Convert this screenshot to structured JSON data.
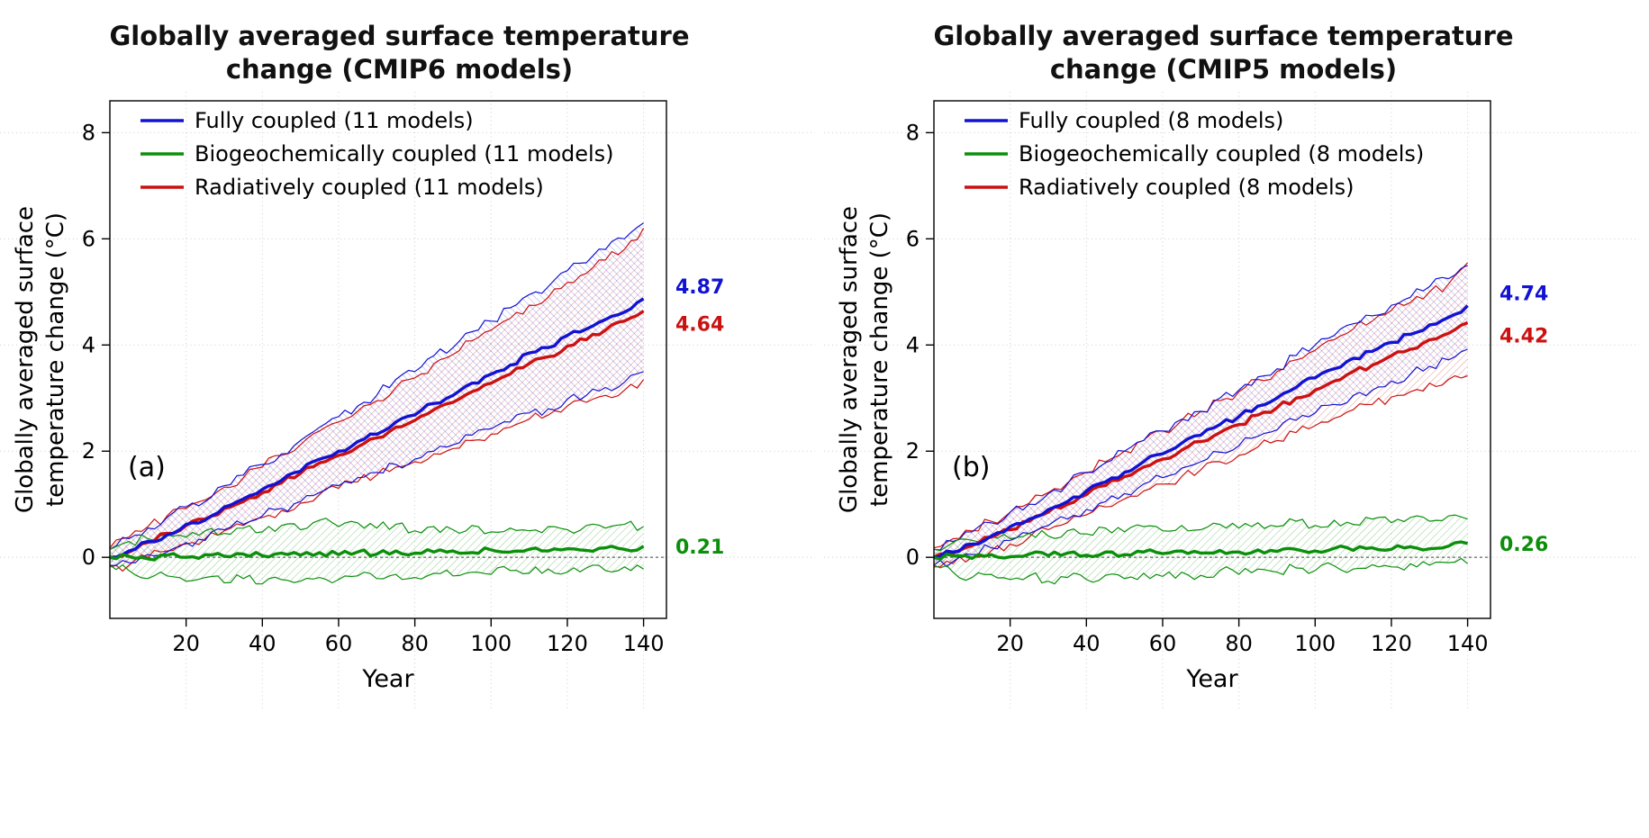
{
  "colors": {
    "fully_coupled": "#1212d2",
    "biogeochemically_coupled": "#0b8f0b",
    "radiatively_coupled": "#cc1111",
    "grid": "#c9c9c9",
    "axis": "#000000",
    "zero_line": "#444444",
    "background": "#ffffff"
  },
  "panels": [
    {
      "panel_label": "(a)",
      "title_line1": "Globally averaged surface temperature",
      "title_line2": "change (CMIP6 models)",
      "xlabel": "Year",
      "ylabel_line1": "Globally averaged surface",
      "ylabel_line2": "temperature change (°C)",
      "x_ticks": [
        20,
        40,
        60,
        80,
        100,
        120,
        140
      ],
      "y_ticks": [
        0,
        2,
        4,
        6,
        8
      ],
      "legend": [
        "Fully coupled (11 models)",
        "Biogeochemically coupled (11 models)",
        "Radiatively coupled (11 models)"
      ],
      "end_labels": [
        {
          "text": "4.87",
          "series": "fully_coupled",
          "value": 4.87
        },
        {
          "text": "4.64",
          "series": "radiatively_coupled",
          "value": 4.64
        },
        {
          "text": "0.21",
          "series": "biogeochemically_coupled",
          "value": 0.21
        }
      ]
    },
    {
      "panel_label": "(b)",
      "title_line1": "Globally averaged surface temperature",
      "title_line2": "change (CMIP5 models)",
      "xlabel": "Year",
      "ylabel_line1": "Globally averaged surface",
      "ylabel_line2": "temperature change (°C)",
      "x_ticks": [
        20,
        40,
        60,
        80,
        100,
        120,
        140
      ],
      "y_ticks": [
        0,
        2,
        4,
        6,
        8
      ],
      "legend": [
        "Fully coupled (8 models)",
        "Biogeochemically coupled (8 models)",
        "Radiatively coupled (8 models)"
      ],
      "end_labels": [
        {
          "text": "4.74",
          "series": "fully_coupled",
          "value": 4.74
        },
        {
          "text": "4.42",
          "series": "radiatively_coupled",
          "value": 4.42
        },
        {
          "text": "0.26",
          "series": "biogeochemically_coupled",
          "value": 0.26
        }
      ]
    }
  ],
  "chart_data": [
    {
      "type": "line",
      "title": "Globally averaged surface temperature change (CMIP6 models)",
      "xlabel": "Year",
      "ylabel": "Globally averaged surface temperature change (°C)",
      "xlim": [
        0,
        146
      ],
      "ylim": [
        -1.15,
        8.6
      ],
      "grid": "dotted",
      "legend_position": "top-left",
      "x": [
        0,
        5,
        10,
        15,
        20,
        25,
        30,
        35,
        40,
        45,
        50,
        55,
        60,
        65,
        70,
        75,
        80,
        85,
        90,
        95,
        100,
        105,
        110,
        115,
        120,
        125,
        130,
        135,
        140
      ],
      "series": [
        {
          "name": "Fully coupled (11 models)",
          "color_key": "fully_coupled",
          "end_value": 4.87,
          "mean": [
            0.0,
            0.12,
            0.3,
            0.42,
            0.62,
            0.7,
            0.95,
            1.1,
            1.28,
            1.45,
            1.62,
            1.85,
            2.0,
            2.18,
            2.32,
            2.55,
            2.68,
            2.9,
            3.05,
            3.28,
            3.45,
            3.62,
            3.85,
            3.95,
            4.18,
            4.3,
            4.48,
            4.62,
            4.87
          ],
          "upper": [
            0.15,
            0.35,
            0.55,
            0.75,
            0.95,
            1.05,
            1.35,
            1.55,
            1.75,
            1.95,
            2.2,
            2.45,
            2.65,
            2.85,
            3.05,
            3.35,
            3.5,
            3.8,
            3.95,
            4.25,
            4.45,
            4.7,
            4.95,
            5.1,
            5.4,
            5.55,
            5.8,
            6.0,
            6.3
          ],
          "lower": [
            -0.15,
            -0.1,
            0.05,
            0.1,
            0.28,
            0.32,
            0.52,
            0.62,
            0.78,
            0.92,
            1.05,
            1.22,
            1.35,
            1.5,
            1.6,
            1.75,
            1.85,
            2.0,
            2.12,
            2.3,
            2.42,
            2.55,
            2.72,
            2.8,
            2.98,
            3.05,
            3.2,
            3.3,
            3.5
          ]
        },
        {
          "name": "Biogeochemically coupled (11 models)",
          "color_key": "biogeochemically_coupled",
          "end_value": 0.21,
          "mean": [
            0.0,
            0.02,
            -0.03,
            0.04,
            0.0,
            0.05,
            0.02,
            0.06,
            0.03,
            0.08,
            0.04,
            0.09,
            0.05,
            0.1,
            0.06,
            0.12,
            0.08,
            0.1,
            0.12,
            0.09,
            0.14,
            0.1,
            0.15,
            0.12,
            0.16,
            0.13,
            0.18,
            0.15,
            0.21
          ],
          "upper": [
            0.15,
            0.3,
            0.35,
            0.42,
            0.38,
            0.5,
            0.45,
            0.55,
            0.48,
            0.6,
            0.52,
            0.7,
            0.58,
            0.65,
            0.55,
            0.62,
            0.5,
            0.58,
            0.52,
            0.6,
            0.48,
            0.55,
            0.5,
            0.58,
            0.52,
            0.6,
            0.55,
            0.62,
            0.58
          ],
          "lower": [
            -0.15,
            -0.25,
            -0.4,
            -0.35,
            -0.45,
            -0.38,
            -0.48,
            -0.4,
            -0.5,
            -0.42,
            -0.45,
            -0.38,
            -0.42,
            -0.35,
            -0.4,
            -0.32,
            -0.38,
            -0.3,
            -0.35,
            -0.28,
            -0.32,
            -0.25,
            -0.3,
            -0.22,
            -0.28,
            -0.2,
            -0.25,
            -0.18,
            -0.22
          ]
        },
        {
          "name": "Radiatively coupled (11 models)",
          "color_key": "radiatively_coupled",
          "end_value": 4.64,
          "mean": [
            0.0,
            0.1,
            0.28,
            0.45,
            0.6,
            0.72,
            0.92,
            1.05,
            1.22,
            1.4,
            1.58,
            1.78,
            1.92,
            2.08,
            2.25,
            2.45,
            2.58,
            2.78,
            2.92,
            3.12,
            3.28,
            3.45,
            3.65,
            3.78,
            3.98,
            4.1,
            4.28,
            4.45,
            4.64
          ],
          "upper": [
            0.18,
            0.38,
            0.58,
            0.78,
            0.92,
            1.08,
            1.32,
            1.5,
            1.7,
            1.92,
            2.12,
            2.38,
            2.55,
            2.75,
            2.95,
            3.2,
            3.38,
            3.65,
            3.82,
            4.08,
            4.28,
            4.5,
            4.75,
            4.9,
            5.18,
            5.35,
            5.6,
            5.8,
            6.2
          ],
          "lower": [
            -0.18,
            -0.15,
            0.0,
            0.12,
            0.25,
            0.35,
            0.5,
            0.6,
            0.75,
            0.88,
            1.02,
            1.18,
            1.3,
            1.42,
            1.55,
            1.7,
            1.8,
            1.95,
            2.05,
            2.2,
            2.32,
            2.45,
            2.6,
            2.68,
            2.85,
            2.92,
            3.05,
            3.15,
            3.35
          ]
        }
      ]
    },
    {
      "type": "line",
      "title": "Globally averaged surface temperature change (CMIP5 models)",
      "xlabel": "Year",
      "ylabel": "Globally averaged surface temperature change (°C)",
      "xlim": [
        0,
        146
      ],
      "ylim": [
        -1.15,
        8.6
      ],
      "grid": "dotted",
      "legend_position": "top-left",
      "x": [
        0,
        5,
        10,
        15,
        20,
        25,
        30,
        35,
        40,
        45,
        50,
        55,
        60,
        65,
        70,
        75,
        80,
        85,
        90,
        95,
        100,
        105,
        110,
        115,
        120,
        125,
        130,
        135,
        140
      ],
      "series": [
        {
          "name": "Fully coupled (8 models)",
          "color_key": "fully_coupled",
          "end_value": 4.74,
          "mean": [
            0.0,
            0.1,
            0.25,
            0.4,
            0.58,
            0.72,
            0.9,
            1.05,
            1.25,
            1.42,
            1.6,
            1.8,
            1.95,
            2.15,
            2.3,
            2.5,
            2.65,
            2.85,
            3.0,
            3.2,
            3.38,
            3.55,
            3.75,
            3.88,
            4.05,
            4.2,
            4.38,
            4.52,
            4.74
          ],
          "upper": [
            0.15,
            0.3,
            0.48,
            0.65,
            0.85,
            1.0,
            1.2,
            1.38,
            1.6,
            1.78,
            2.0,
            2.2,
            2.38,
            2.6,
            2.75,
            3.0,
            3.15,
            3.4,
            3.55,
            3.8,
            4.0,
            4.18,
            4.4,
            4.55,
            4.75,
            4.9,
            5.1,
            5.25,
            5.5
          ],
          "lower": [
            -0.15,
            -0.08,
            0.05,
            0.18,
            0.32,
            0.45,
            0.6,
            0.72,
            0.9,
            1.05,
            1.2,
            1.38,
            1.5,
            1.68,
            1.8,
            1.98,
            2.1,
            2.28,
            2.4,
            2.58,
            2.72,
            2.88,
            3.05,
            3.15,
            3.32,
            3.45,
            3.6,
            3.72,
            3.92
          ]
        },
        {
          "name": "Biogeochemically coupled (8 models)",
          "color_key": "biogeochemically_coupled",
          "end_value": 0.26,
          "mean": [
            0.0,
            0.03,
            -0.02,
            0.05,
            0.01,
            0.06,
            0.03,
            0.08,
            0.04,
            0.1,
            0.05,
            0.1,
            0.07,
            0.12,
            0.08,
            0.13,
            0.1,
            0.14,
            0.11,
            0.15,
            0.12,
            0.17,
            0.13,
            0.18,
            0.15,
            0.2,
            0.16,
            0.21,
            0.26
          ],
          "upper": [
            0.15,
            0.28,
            0.32,
            0.4,
            0.35,
            0.45,
            0.4,
            0.5,
            0.44,
            0.55,
            0.48,
            0.58,
            0.5,
            0.6,
            0.52,
            0.62,
            0.55,
            0.65,
            0.58,
            0.68,
            0.6,
            0.7,
            0.62,
            0.72,
            0.65,
            0.75,
            0.68,
            0.78,
            0.72
          ],
          "lower": [
            -0.15,
            -0.28,
            -0.38,
            -0.32,
            -0.42,
            -0.35,
            -0.45,
            -0.38,
            -0.42,
            -0.34,
            -0.4,
            -0.3,
            -0.36,
            -0.28,
            -0.34,
            -0.25,
            -0.32,
            -0.22,
            -0.28,
            -0.2,
            -0.25,
            -0.16,
            -0.22,
            -0.14,
            -0.18,
            -0.12,
            -0.15,
            -0.1,
            -0.12
          ]
        },
        {
          "name": "Radiatively coupled (8 models)",
          "color_key": "radiatively_coupled",
          "end_value": 4.42,
          "mean": [
            0.0,
            0.08,
            0.22,
            0.38,
            0.52,
            0.68,
            0.85,
            1.0,
            1.18,
            1.35,
            1.52,
            1.7,
            1.85,
            2.02,
            2.18,
            2.35,
            2.5,
            2.68,
            2.82,
            3.0,
            3.15,
            3.32,
            3.5,
            3.62,
            3.8,
            3.92,
            4.1,
            4.22,
            4.42
          ],
          "upper": [
            0.18,
            0.35,
            0.5,
            0.68,
            0.85,
            1.02,
            1.22,
            1.4,
            1.6,
            1.8,
            2.0,
            2.2,
            2.38,
            2.58,
            2.75,
            2.95,
            3.12,
            3.35,
            3.5,
            3.72,
            3.9,
            4.1,
            4.3,
            4.45,
            4.65,
            4.8,
            5.0,
            5.15,
            5.55
          ],
          "lower": [
            -0.18,
            -0.12,
            0.0,
            0.12,
            0.25,
            0.38,
            0.52,
            0.65,
            0.8,
            0.95,
            1.1,
            1.25,
            1.38,
            1.52,
            1.65,
            1.8,
            1.92,
            2.08,
            2.2,
            2.35,
            2.48,
            2.62,
            2.78,
            2.88,
            3.02,
            3.12,
            3.28,
            3.35,
            3.42
          ]
        }
      ]
    }
  ]
}
